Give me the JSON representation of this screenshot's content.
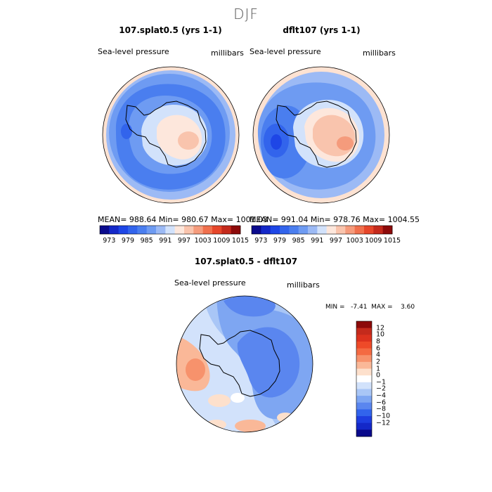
{
  "figure": {
    "season": "DJF"
  },
  "chart_data": [
    {
      "type": "heatmap",
      "title": "107.splat0.5 (yrs 1-1)",
      "variable": "Sea-level pressure",
      "units": "millibars",
      "projection": "south polar stereographic",
      "stats": {
        "mean": 988.64,
        "min": 980.67,
        "max": 1001.03
      },
      "stats_text": "MEAN= 988.64   Min= 980.67   Max= 1001.03",
      "colorbar": {
        "levels": [
          973,
          976,
          979,
          982,
          985,
          988,
          991,
          994,
          997,
          1000,
          1003,
          1006,
          1009,
          1012,
          1015
        ],
        "tick_labels": [
          "973",
          "979",
          "985",
          "991",
          "997",
          "1003",
          "1009",
          "1015"
        ],
        "colors": [
          "#0a0a8c",
          "#1428c8",
          "#1e46e6",
          "#3264ec",
          "#4a7eef",
          "#6e9bf2",
          "#9cbaf5",
          "#d2e2fb",
          "#fde7dc",
          "#f9c4ad",
          "#f59b7c",
          "#f0704d",
          "#e6462a",
          "#c42a1c",
          "#8c0a0a"
        ]
      }
    },
    {
      "type": "heatmap",
      "title": "dflt107 (yrs 1-1)",
      "variable": "Sea-level pressure",
      "units": "millibars",
      "projection": "south polar stereographic",
      "stats": {
        "mean": 991.04,
        "min": 978.76,
        "max": 1004.55
      },
      "stats_text": "MEAN= 991.04   Min= 978.76   Max= 1004.55",
      "colorbar": {
        "levels": [
          973,
          976,
          979,
          982,
          985,
          988,
          991,
          994,
          997,
          1000,
          1003,
          1006,
          1009,
          1012,
          1015
        ],
        "tick_labels": [
          "973",
          "979",
          "985",
          "991",
          "997",
          "1003",
          "1009",
          "1015"
        ],
        "colors": [
          "#0a0a8c",
          "#1428c8",
          "#1e46e6",
          "#3264ec",
          "#4a7eef",
          "#6e9bf2",
          "#9cbaf5",
          "#d2e2fb",
          "#fde7dc",
          "#f9c4ad",
          "#f59b7c",
          "#f0704d",
          "#e6462a",
          "#c42a1c",
          "#8c0a0a"
        ]
      }
    },
    {
      "type": "heatmap",
      "title": "107.splat0.5 - dflt107",
      "variable": "Sea-level pressure",
      "units": "millibars",
      "projection": "south polar stereographic",
      "stats": {
        "min": -7.41,
        "max": 3.6
      },
      "minmax_text": "MIN =   -7.41  MAX =    3.60",
      "colorbar": {
        "tick_labels": [
          "12",
          "10",
          "8",
          "6",
          "4",
          "2",
          "1",
          "0",
          "−1",
          "−2",
          "−4",
          "−6",
          "−8",
          "−10",
          "−12"
        ],
        "colors": [
          "#8c0a0a",
          "#c42a1c",
          "#dc321e",
          "#ee4a28",
          "#f46a42",
          "#f7926c",
          "#fab898",
          "#fde0cc",
          "#ffffff",
          "#d2e2fb",
          "#a9c6f6",
          "#7ea6f2",
          "#5a86ef",
          "#3264ec",
          "#1e3ee0",
          "#1428c8",
          "#0a0a8c"
        ]
      }
    }
  ]
}
